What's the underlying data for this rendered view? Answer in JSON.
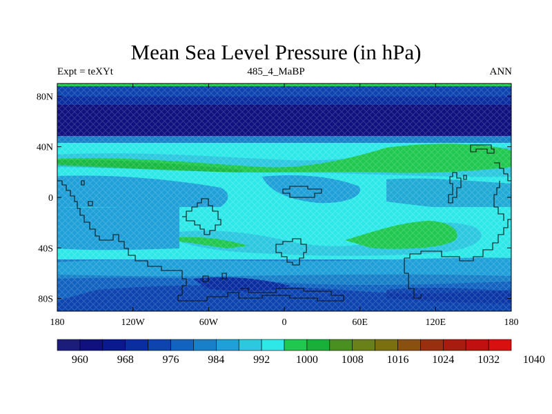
{
  "title": "Mean Sea Level Pressure (in hPa)",
  "left_label": "Expt = teXYt",
  "center_label": "485_4_MaBP",
  "right_label": "ANN",
  "map": {
    "lon_range": [
      -180,
      180
    ],
    "lat_range": [
      -90,
      90
    ],
    "x_ticks": [
      {
        "value": -180,
        "label": "180"
      },
      {
        "value": -120,
        "label": "120W"
      },
      {
        "value": -60,
        "label": "60W"
      },
      {
        "value": 0,
        "label": "0"
      },
      {
        "value": 60,
        "label": "60E"
      },
      {
        "value": 120,
        "label": "120E"
      },
      {
        "value": 180,
        "label": "180"
      }
    ],
    "y_ticks": [
      {
        "value": 80,
        "label": "80N"
      },
      {
        "value": 40,
        "label": "40N"
      },
      {
        "value": 0,
        "label": "0"
      },
      {
        "value": -40,
        "label": "40S"
      },
      {
        "value": -80,
        "label": "80S"
      }
    ]
  },
  "colorbar": {
    "colors": [
      "#1c1c7a",
      "#10107e",
      "#0a1a8e",
      "#0a2ea0",
      "#0d44b0",
      "#1262c0",
      "#1880c8",
      "#1fa0d8",
      "#2cc8e0",
      "#2ee8e8",
      "#20c850",
      "#18b038",
      "#4a9020",
      "#6a8018",
      "#7a7010",
      "#8a5010",
      "#983010",
      "#a81c10",
      "#c01010",
      "#d81010"
    ],
    "labels": [
      "960",
      "968",
      "976",
      "984",
      "992",
      "1000",
      "1008",
      "1016",
      "1024",
      "1032",
      "1040"
    ]
  }
}
